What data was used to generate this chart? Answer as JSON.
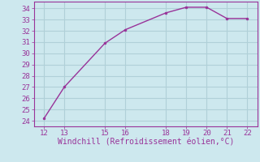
{
  "x": [
    12,
    13,
    15,
    16,
    18,
    19,
    20,
    21,
    22
  ],
  "y": [
    24.2,
    27.0,
    30.9,
    32.1,
    33.6,
    34.1,
    34.1,
    33.1,
    33.1
  ],
  "line_color": "#993399",
  "marker_color": "#993399",
  "bg_color": "#cde8ee",
  "grid_color": "#b0d0d8",
  "xlabel": "Windchill (Refroidissement éolien,°C)",
  "xlabel_color": "#993399",
  "tick_color": "#993399",
  "spine_color": "#993399",
  "xlim": [
    11.5,
    22.5
  ],
  "ylim": [
    23.5,
    34.6
  ],
  "xticks": [
    12,
    13,
    15,
    16,
    18,
    19,
    20,
    21,
    22
  ],
  "yticks": [
    24,
    25,
    26,
    27,
    28,
    29,
    30,
    31,
    32,
    33,
    34
  ],
  "xlabel_fontsize": 7.0,
  "tick_fontsize": 6.5,
  "font_family": "monospace",
  "linewidth": 1.0,
  "markersize": 2.0
}
